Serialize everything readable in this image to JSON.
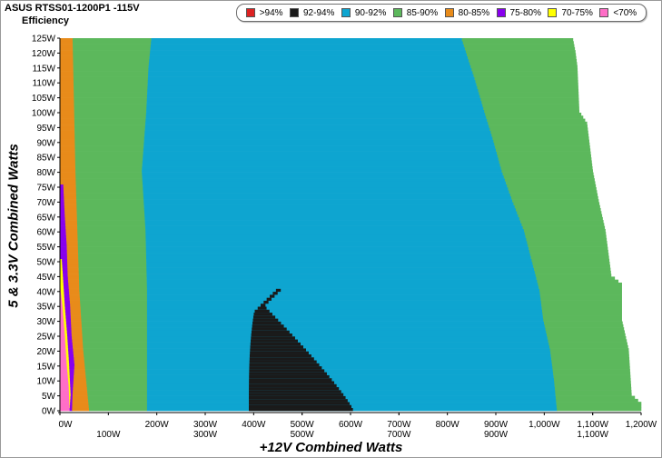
{
  "chart_data": {
    "type": "heatmap",
    "title": "ASUS RTSS01-1200P1 -115V",
    "subtitle": "Efficiency",
    "xlabel": "+12V Combined Watts",
    "ylabel": "5 & 3.3V Combined Watts",
    "x_ticks_top": [
      "0W",
      "200W",
      "300W",
      "400W",
      "500W",
      "600W",
      "700W",
      "800W",
      "900W",
      "1,000W",
      "1,100W",
      "1,200W"
    ],
    "x_ticks_bottom": [
      "100W",
      "300W",
      "500W",
      "700W",
      "900W",
      "1,100W"
    ],
    "y_ticks": [
      "125W",
      "120W",
      "115W",
      "110W",
      "105W",
      "100W",
      "95W",
      "90W",
      "85W",
      "80W",
      "75W",
      "70W",
      "65W",
      "60W",
      "55W",
      "50W",
      "45W",
      "40W",
      "35W",
      "30W",
      "25W",
      "20W",
      "15W",
      "10W",
      "5W",
      "0W"
    ],
    "x_range": [
      0,
      1200
    ],
    "y_range": [
      0,
      125
    ],
    "legend": [
      {
        "label": ">94%",
        "color": "#dd2222"
      },
      {
        "label": "92-94%",
        "color": "#1a1a1a"
      },
      {
        "label": "90-92%",
        "color": "#0ea5d0"
      },
      {
        "label": "85-90%",
        "color": "#5cb85c"
      },
      {
        "label": "80-85%",
        "color": "#e88b1a"
      },
      {
        "label": "75-80%",
        "color": "#8800ee"
      },
      {
        "label": "70-75%",
        "color": "#ffff00"
      },
      {
        "label": "<70%",
        "color": "#ff6ec7"
      }
    ],
    "legend_position": "top",
    "grid": false
  }
}
